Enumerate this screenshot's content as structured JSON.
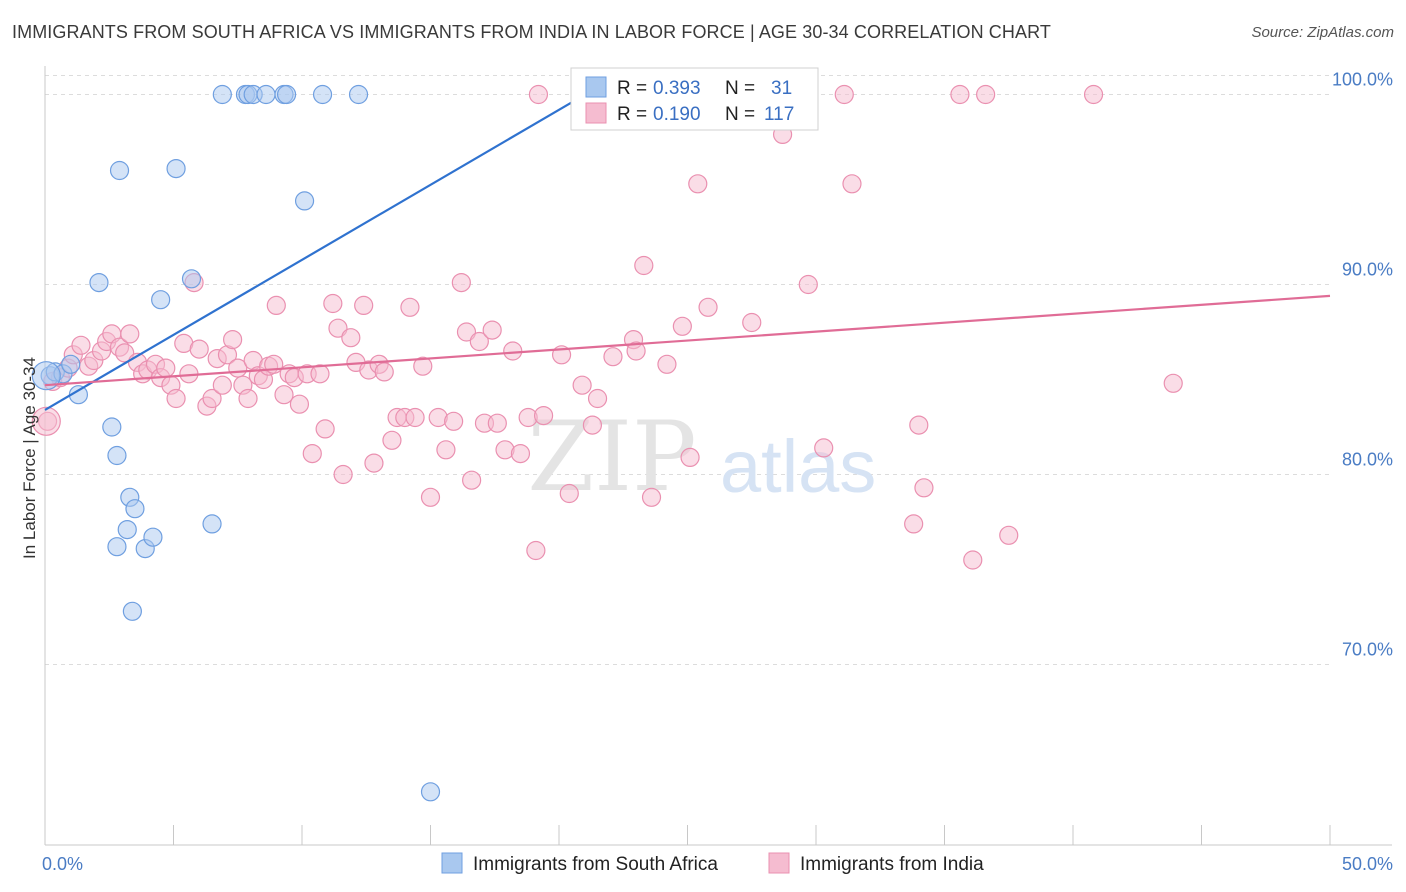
{
  "title": "IMMIGRANTS FROM SOUTH AFRICA VS IMMIGRANTS FROM INDIA IN LABOR FORCE | AGE 30-34 CORRELATION CHART",
  "source": "Source: ZipAtlas.com",
  "watermark": {
    "zip": "ZIP",
    "atlas": "atlas"
  },
  "colors": {
    "blue_fill": "#a9c8ef",
    "blue_stroke": "#6f9fe0",
    "blue_line": "#2f72cf",
    "pink_fill": "#f5bcd0",
    "pink_stroke": "#ea90b0",
    "pink_line": "#e06c96",
    "tick_text": "#4a7cc4"
  },
  "legend": {
    "rows": [
      {
        "r_label": "R =",
        "r_value": "0.393",
        "n_label": "N =",
        "n_value": "31"
      },
      {
        "r_label": "R =",
        "r_value": "0.190",
        "n_label": "N =",
        "n_value": "117"
      }
    ]
  },
  "bottom_legend": [
    "Immigrants from South Africa",
    "Immigrants from India"
  ],
  "chart_data": {
    "type": "scatter",
    "title": "IMMIGRANTS FROM SOUTH AFRICA VS IMMIGRANTS FROM INDIA IN LABOR FORCE | AGE 30-34 CORRELATION CHART",
    "xlabel": "",
    "ylabel": "In Labor Force | Age 30-34",
    "xlim": [
      0,
      50
    ],
    "ylim": [
      60.5,
      101.5
    ],
    "x_tick_labels": [
      "0.0%",
      "50.0%"
    ],
    "y_ticks": [
      70,
      80,
      90,
      100
    ],
    "y_tick_labels": [
      "70.0%",
      "80.0%",
      "90.0%",
      "100.0%"
    ],
    "grid": true,
    "legend_position": "top-center",
    "series": [
      {
        "name": "Immigrants from South Africa",
        "points": [
          [
            0.2,
            85.2
          ],
          [
            0.4,
            85.4
          ],
          [
            0.7,
            85.3
          ],
          [
            1.0,
            85.8
          ],
          [
            1.3,
            84.2
          ],
          [
            2.1,
            90.1
          ],
          [
            2.9,
            96.0
          ],
          [
            3.3,
            78.8
          ],
          [
            2.6,
            82.5
          ],
          [
            2.8,
            81.0
          ],
          [
            3.5,
            78.2
          ],
          [
            2.8,
            76.2
          ],
          [
            3.2,
            77.1
          ],
          [
            3.4,
            72.8
          ],
          [
            3.9,
            76.1
          ],
          [
            4.2,
            76.7
          ],
          [
            4.5,
            89.2
          ],
          [
            5.1,
            96.1
          ],
          [
            5.7,
            90.3
          ],
          [
            6.5,
            77.4
          ],
          [
            6.9,
            100.0
          ],
          [
            7.8,
            100.0
          ],
          [
            7.9,
            100.0
          ],
          [
            8.1,
            100.0
          ],
          [
            8.6,
            100.0
          ],
          [
            9.3,
            100.0
          ],
          [
            9.4,
            100.0
          ],
          [
            10.1,
            94.4
          ],
          [
            10.8,
            100.0
          ],
          [
            12.2,
            100.0
          ],
          [
            15.0,
            63.3
          ]
        ],
        "trend": [
          [
            0,
            83.4
          ],
          [
            21.4,
            100.3
          ]
        ]
      },
      {
        "name": "Immigrants from India",
        "points": [
          [
            0.1,
            82.8
          ],
          [
            0.3,
            84.9
          ],
          [
            0.6,
            85.1
          ],
          [
            0.9,
            85.6
          ],
          [
            1.1,
            86.3
          ],
          [
            1.4,
            86.8
          ],
          [
            1.7,
            85.7
          ],
          [
            1.9,
            86.0
          ],
          [
            2.2,
            86.5
          ],
          [
            2.4,
            87.0
          ],
          [
            2.6,
            87.4
          ],
          [
            2.9,
            86.7
          ],
          [
            3.1,
            86.4
          ],
          [
            3.3,
            87.4
          ],
          [
            3.6,
            85.9
          ],
          [
            3.8,
            85.3
          ],
          [
            4.0,
            85.5
          ],
          [
            4.3,
            85.8
          ],
          [
            4.5,
            85.1
          ],
          [
            4.7,
            85.6
          ],
          [
            4.9,
            84.7
          ],
          [
            5.1,
            84.0
          ],
          [
            5.4,
            86.9
          ],
          [
            5.6,
            85.3
          ],
          [
            5.8,
            90.1
          ],
          [
            6.0,
            86.6
          ],
          [
            6.3,
            83.6
          ],
          [
            6.5,
            84.0
          ],
          [
            6.7,
            86.1
          ],
          [
            6.9,
            84.7
          ],
          [
            7.1,
            86.3
          ],
          [
            7.3,
            87.1
          ],
          [
            7.5,
            85.6
          ],
          [
            7.7,
            84.7
          ],
          [
            7.9,
            84.0
          ],
          [
            8.1,
            86.0
          ],
          [
            8.3,
            85.2
          ],
          [
            8.5,
            85.0
          ],
          [
            8.7,
            85.7
          ],
          [
            8.9,
            85.8
          ],
          [
            9.0,
            88.9
          ],
          [
            9.3,
            84.2
          ],
          [
            9.5,
            85.3
          ],
          [
            9.7,
            85.1
          ],
          [
            9.9,
            83.7
          ],
          [
            10.2,
            85.3
          ],
          [
            10.4,
            81.1
          ],
          [
            10.7,
            85.3
          ],
          [
            10.9,
            82.4
          ],
          [
            11.2,
            89.0
          ],
          [
            11.4,
            87.7
          ],
          [
            11.6,
            80.0
          ],
          [
            11.9,
            87.2
          ],
          [
            12.1,
            85.9
          ],
          [
            12.4,
            88.9
          ],
          [
            12.6,
            85.5
          ],
          [
            12.8,
            80.6
          ],
          [
            13.0,
            85.8
          ],
          [
            13.2,
            85.4
          ],
          [
            13.5,
            81.8
          ],
          [
            13.7,
            83.0
          ],
          [
            14.0,
            83.0
          ],
          [
            14.2,
            88.8
          ],
          [
            14.4,
            83.0
          ],
          [
            14.7,
            85.7
          ],
          [
            15.0,
            78.8
          ],
          [
            15.3,
            83.0
          ],
          [
            15.6,
            81.3
          ],
          [
            15.9,
            82.8
          ],
          [
            16.2,
            90.1
          ],
          [
            16.4,
            87.5
          ],
          [
            16.6,
            79.7
          ],
          [
            16.9,
            87.0
          ],
          [
            17.1,
            82.7
          ],
          [
            17.4,
            87.6
          ],
          [
            17.6,
            82.7
          ],
          [
            17.9,
            81.3
          ],
          [
            18.2,
            86.5
          ],
          [
            18.5,
            81.1
          ],
          [
            18.8,
            83.0
          ],
          [
            19.1,
            76.0
          ],
          [
            19.4,
            83.1
          ],
          [
            20.1,
            86.3
          ],
          [
            20.4,
            79.0
          ],
          [
            20.9,
            84.7
          ],
          [
            21.3,
            82.6
          ],
          [
            21.5,
            84.0
          ],
          [
            22.1,
            86.2
          ],
          [
            22.9,
            87.1
          ],
          [
            23.0,
            86.5
          ],
          [
            23.3,
            91.0
          ],
          [
            23.6,
            78.8
          ],
          [
            24.2,
            85.8
          ],
          [
            24.8,
            87.8
          ],
          [
            25.1,
            80.9
          ],
          [
            25.4,
            95.3
          ],
          [
            25.8,
            88.8
          ],
          [
            27.5,
            88.0
          ],
          [
            28.7,
            97.9
          ],
          [
            29.7,
            90.0
          ],
          [
            30.3,
            81.4
          ],
          [
            31.4,
            95.3
          ],
          [
            31.1,
            100.0
          ],
          [
            21.0,
            100.0
          ],
          [
            27.5,
            100.0
          ],
          [
            33.8,
            77.4
          ],
          [
            34.0,
            82.6
          ],
          [
            34.2,
            79.3
          ],
          [
            35.6,
            100.0
          ],
          [
            36.1,
            75.5
          ],
          [
            36.6,
            100.0
          ],
          [
            37.5,
            76.8
          ],
          [
            40.8,
            100.0
          ],
          [
            43.9,
            84.8
          ],
          [
            19.2,
            100.0
          ]
        ],
        "trend": [
          [
            0,
            84.7
          ],
          [
            50,
            89.4
          ]
        ]
      }
    ]
  }
}
